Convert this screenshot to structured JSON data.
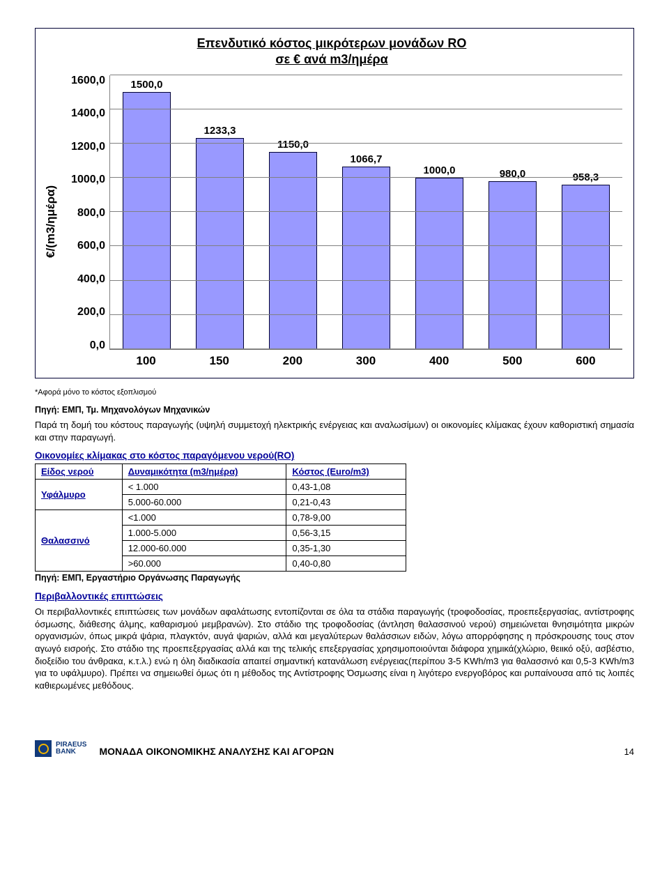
{
  "chart": {
    "type": "bar",
    "title_line1": "Επενδυτικό κόστος μικρότερων μονάδων RO",
    "title_line2": "σε € ανά m3/ημέρα",
    "y_axis_label": "€/(m3/ημέρα)",
    "y_max": 1600,
    "y_ticks": [
      "0,0",
      "200,0",
      "400,0",
      "600,0",
      "800,0",
      "1000,0",
      "1200,0",
      "1400,0",
      "1600,0"
    ],
    "x_ticks": [
      "100",
      "150",
      "200",
      "300",
      "400",
      "500",
      "600"
    ],
    "bars": [
      {
        "label": "1500,0",
        "value": 1500
      },
      {
        "label": "1233,3",
        "value": 1233.3
      },
      {
        "label": "1150,0",
        "value": 1150
      },
      {
        "label": "1066,7",
        "value": 1066.7
      },
      {
        "label": "1000,0",
        "value": 1000
      },
      {
        "label": "980,0",
        "value": 980
      },
      {
        "label": "958,3",
        "value": 958.3
      }
    ],
    "bar_fill": "#9999ff",
    "bar_border": "#000033",
    "grid_color": "#808080",
    "background": "#ffffff"
  },
  "note": "*Αφορά μόνο το κόστος εξοπλισμού",
  "source1": "Πηγή: ΕΜΠ, Τμ. Μηχανολόγων Μηχανικών",
  "para1": "Παρά τη δομή του κόστους παραγωγής (υψηλή συμμετοχή ηλεκτρικής ενέργειας και αναλωσίμων) οι οικονομίες κλίμακας έχουν καθοριστική σημασία και στην παραγωγή.",
  "table_title": "Οικονομίες κλίμακας στο κόστος παραγόμενου νερού(RO)",
  "table": {
    "headers": [
      "Είδος νερού",
      "Δυναμικότητα (m3/ημέρα)",
      "Κόστος (Euro/m3)"
    ],
    "rows": [
      {
        "group": "Υφάλμυρο",
        "cap": "< 1.000",
        "cost": "0,43-1,08"
      },
      {
        "group": "",
        "cap": "5.000-60.000",
        "cost": "0,21-0,43"
      },
      {
        "group": "Θαλασσινό",
        "cap": "<1.000",
        "cost": "0,78-9,00"
      },
      {
        "group": "",
        "cap": "1.000-5.000",
        "cost": "0,56-3,15"
      },
      {
        "group": "",
        "cap": "12.000-60.000",
        "cost": "0,35-1,30"
      },
      {
        "group": "",
        "cap": ">60.000",
        "cost": "0,40-0,80"
      }
    ]
  },
  "source2": "Πηγή: ΕΜΠ, Εργαστήριο Οργάνωσης Παραγωγής",
  "section_head": "Περιβαλλοντικές επιπτώσεις",
  "para2": "Οι περιβαλλοντικές επιπτώσεις των μονάδων αφαλάτωσης εντοπίζονται σε όλα τα στάδια παραγωγής (τροφοδοσίας, προεπεξεργασίας, αντίστροφης όσμωσης, διάθεσης άλμης, καθαρισμού μεμβρανών). Στο στάδιο της τροφοδοσίας (άντληση θαλασσινού νερού) σημειώνεται θνησιμότητα μικρών οργανισμών, όπως μικρά ψάρια, πλαγκτόν, αυγά ψαριών, αλλά και μεγαλύτερων θαλάσσιων ειδών, λόγω απορρόφησης η πρόσκρουσης τους στον αγωγό εισροής. Στο στάδιο της προεπεξεργασίας αλλά και της τελικής επεξεργασίας χρησιμοποιούνται διάφορα χημικά(χλώριο, θειικό οξύ, ασβέστιο, διοξείδιο του άνθρακα, κ.τ.λ.) ενώ η όλη διαδικασία απαιτεί σημαντική κατανάλωση ενέργειας(περίπου 3-5 KWh/m3 για θαλασσινό και 0,5-3 KWh/m3 για το υφάλμυρο). Πρέπει να σημειωθεί όμως ότι η μέθοδος της Αντίστροφης Όσμωσης είναι η λιγότερο ενεργοβόρος και ρυπαίνουσα  από τις λοιπές καθιερωμένες μεθόδους.",
  "footer": {
    "logo_brand": "PIRAEUS",
    "logo_sub": "BANK",
    "title": "ΜΟΝΑΔΑ ΟΙΚΟΝΟΜΙΚΗΣ ΑΝΑΛΥΣΗΣ ΚΑΙ ΑΓΟΡΩΝ",
    "page": "14"
  }
}
